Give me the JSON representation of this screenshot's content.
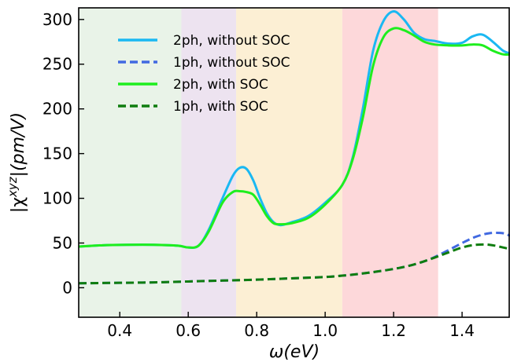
{
  "chart_data": {
    "type": "line",
    "xlabel": "ω(eV)",
    "ylabel": "|χ^xyz|(pm/V)",
    "xlim": [
      0.28,
      1.54
    ],
    "ylim": [
      -33,
      313
    ],
    "x_ticks": [
      0.4,
      0.6,
      0.8,
      1.0,
      1.2,
      1.4
    ],
    "x_tick_labels": [
      "0.4",
      "0.6",
      "0.8",
      "1.0",
      "1.2",
      "1.4"
    ],
    "y_ticks": [
      0,
      50,
      100,
      150,
      200,
      250,
      300
    ],
    "y_tick_labels": [
      "0",
      "50",
      "100",
      "150",
      "200",
      "250",
      "300"
    ],
    "grid": false,
    "legend_position": "top-left",
    "shaded_regions": [
      {
        "x_range": [
          0.28,
          0.58
        ],
        "color": "#e9f3e8"
      },
      {
        "x_range": [
          0.58,
          0.74
        ],
        "color": "#ede3f0"
      },
      {
        "x_range": [
          0.74,
          1.05
        ],
        "color": "#fcefd4"
      },
      {
        "x_range": [
          1.05,
          1.33
        ],
        "color": "#fdd8da"
      }
    ],
    "series": [
      {
        "name": "2ph, without SOC",
        "color": "#1ab8f2",
        "dash": "solid",
        "x": [
          0.28,
          0.35,
          0.42,
          0.5,
          0.57,
          0.6,
          0.63,
          0.66,
          0.7,
          0.73,
          0.75,
          0.77,
          0.79,
          0.81,
          0.83,
          0.85,
          0.87,
          0.9,
          0.95,
          1.0,
          1.05,
          1.08,
          1.11,
          1.14,
          1.17,
          1.2,
          1.23,
          1.26,
          1.29,
          1.32,
          1.36,
          1.4,
          1.43,
          1.46,
          1.49,
          1.52,
          1.54
        ],
        "y": [
          46,
          47.5,
          48,
          48,
          47,
          45,
          47,
          65,
          100,
          125,
          134,
          133,
          120,
          100,
          83,
          73,
          70,
          73,
          80,
          95,
          115,
          145,
          200,
          265,
          298,
          309,
          300,
          285,
          278,
          276,
          273,
          274,
          281,
          283,
          275,
          265,
          262
        ]
      },
      {
        "name": "1ph, without SOC",
        "color": "#4169e1",
        "dash": "dashed",
        "x": [
          0.28,
          0.4,
          0.5,
          0.6,
          0.7,
          0.8,
          0.9,
          1.0,
          1.05,
          1.1,
          1.15,
          1.2,
          1.25,
          1.3,
          1.35,
          1.4,
          1.44,
          1.48,
          1.52,
          1.54
        ],
        "y": [
          5,
          5.5,
          6,
          7,
          8,
          9,
          10.5,
          12,
          13.5,
          15.5,
          18,
          21,
          25,
          31,
          40,
          50,
          57,
          61,
          61,
          58
        ]
      },
      {
        "name": "2ph, with SOC",
        "color": "#1eee1e",
        "dash": "solid",
        "x": [
          0.28,
          0.35,
          0.42,
          0.5,
          0.57,
          0.6,
          0.63,
          0.66,
          0.7,
          0.73,
          0.75,
          0.77,
          0.79,
          0.81,
          0.83,
          0.85,
          0.87,
          0.9,
          0.95,
          1.0,
          1.05,
          1.08,
          1.11,
          1.14,
          1.17,
          1.2,
          1.23,
          1.26,
          1.29,
          1.32,
          1.36,
          1.4,
          1.43,
          1.46,
          1.49,
          1.52,
          1.54
        ],
        "y": [
          46,
          47.5,
          48,
          48,
          47,
          45,
          47,
          63,
          95,
          107,
          108,
          107,
          104,
          93,
          80,
          72,
          71,
          72,
          78,
          93,
          115,
          143,
          190,
          248,
          280,
          290,
          288,
          282,
          275,
          272,
          271,
          271,
          272,
          271,
          265,
          261,
          261
        ]
      },
      {
        "name": "1ph, with SOC",
        "color": "#0f7d0f",
        "dash": "dashed",
        "x": [
          0.28,
          0.4,
          0.5,
          0.6,
          0.7,
          0.8,
          0.9,
          1.0,
          1.05,
          1.1,
          1.15,
          1.2,
          1.25,
          1.3,
          1.35,
          1.4,
          1.44,
          1.48,
          1.52,
          1.54
        ],
        "y": [
          5,
          5.5,
          6,
          7,
          8,
          9,
          10.5,
          12,
          13.5,
          15.5,
          18,
          21,
          25,
          31,
          38,
          45,
          48,
          48,
          45,
          43
        ]
      }
    ]
  }
}
